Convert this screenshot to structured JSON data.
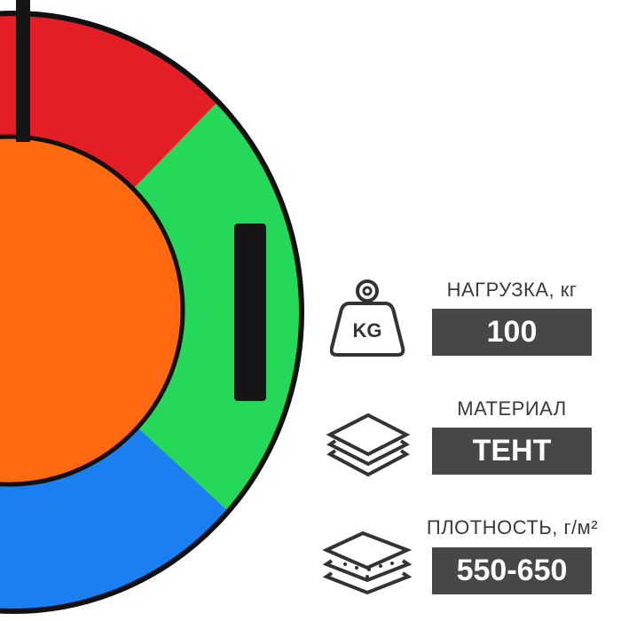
{
  "product": {
    "colors": {
      "red": "#e41e26",
      "green": "#25d85a",
      "blue": "#1a7ff0",
      "orange": "#ff6a10",
      "outline": "#111111",
      "box": "#474747"
    }
  },
  "specs": [
    {
      "label": "НАГРУЗКА, кг",
      "value": "100",
      "icon": "weight-kg-icon",
      "icon_text": "KG"
    },
    {
      "label": "МАТЕРИАЛ",
      "value": "ТЕНТ",
      "icon": "layers-icon"
    },
    {
      "label": "ПЛОТНОСТЬ, г/м²",
      "value": "550-650",
      "icon": "fabric-layers-icon"
    }
  ]
}
